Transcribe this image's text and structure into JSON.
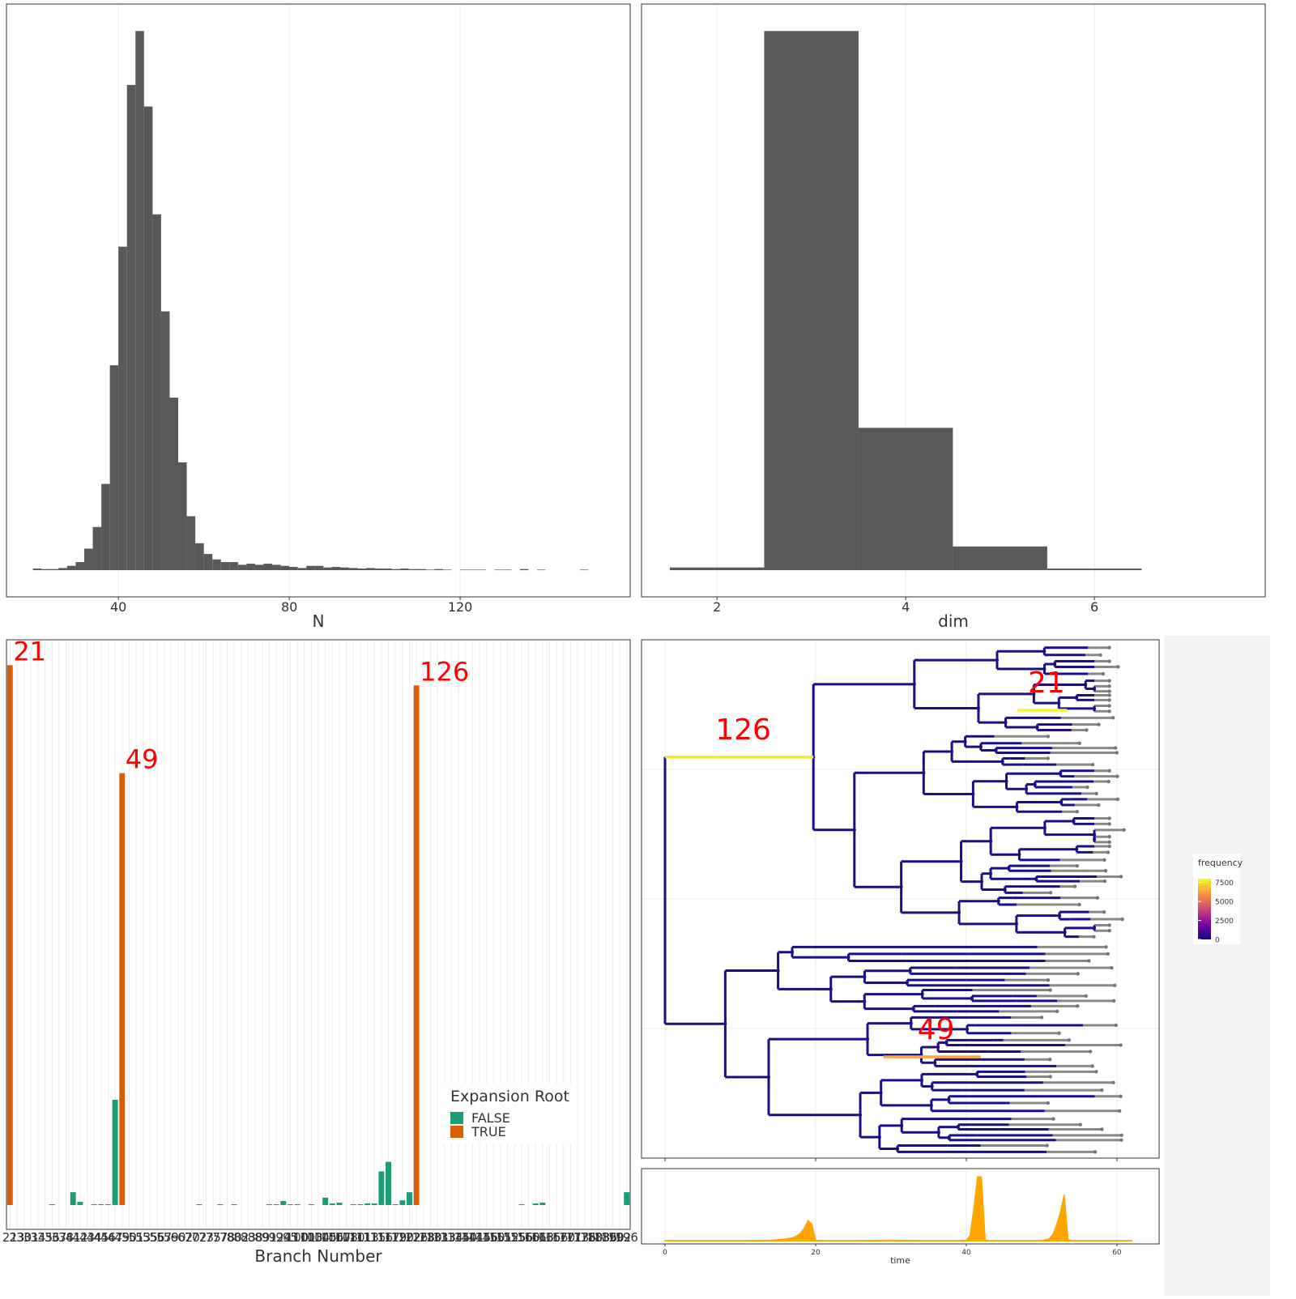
{
  "chart_data": [
    {
      "type": "histogram",
      "xlabel": "N",
      "bins": [
        20,
        22,
        24,
        26,
        28,
        30,
        32,
        34,
        36,
        38,
        40,
        42,
        44,
        46,
        48,
        50,
        52,
        54,
        56,
        58,
        60,
        62,
        64,
        66,
        68,
        70,
        72,
        74,
        76,
        78,
        80,
        82,
        84,
        86,
        88,
        90,
        92,
        94,
        96,
        98,
        100,
        102,
        104,
        106,
        108,
        110,
        112,
        114,
        116,
        118,
        120,
        122,
        124,
        126,
        128,
        130,
        132,
        134,
        136,
        138,
        140,
        142,
        144,
        146,
        148,
        150,
        152,
        154
      ],
      "values": [
        0.3,
        0.2,
        0.2,
        0.4,
        0.8,
        1.5,
        4,
        8,
        16,
        38,
        60,
        90,
        100,
        86,
        66,
        48,
        32,
        20,
        10,
        5,
        3,
        2,
        1.5,
        1.5,
        1,
        1.2,
        1,
        1.2,
        1,
        0.8,
        0.6,
        0.4,
        0.8,
        0.8,
        0.5,
        0.6,
        0.5,
        0.4,
        0.3,
        0.4,
        0.3,
        0.3,
        0.2,
        0.3,
        0.2,
        0.2,
        0.1,
        0.2,
        0.1,
        0,
        0.1,
        0.1,
        0.1,
        0,
        0.1,
        0.1,
        0,
        0.2,
        0,
        0.1,
        0,
        0,
        0,
        0,
        0.1,
        0,
        0
      ],
      "color": "#595959",
      "xlim": [
        13.8,
        159.8
      ],
      "xticks": [
        40,
        80,
        120
      ],
      "ylim": [
        -4.95,
        105
      ]
    },
    {
      "type": "histogram",
      "xlabel": "dim",
      "bins": [
        1.5,
        2.5,
        3.5,
        4.5,
        5.5,
        6.5
      ],
      "values": [
        0.5,
        100,
        26.4,
        4.4,
        0.3
      ],
      "color": "#595959",
      "xlim": [
        1.2,
        7.81
      ],
      "xticks": [
        2,
        4,
        6
      ],
      "ylim": [
        -4.95,
        105
      ]
    },
    {
      "type": "bar",
      "xlabel": "Branch Number",
      "legend_title": "Expansion Root",
      "categories": [
        "21",
        "23",
        "30",
        "31",
        "34",
        "35",
        "36",
        "37",
        "38",
        "41",
        "42",
        "43",
        "44",
        "45",
        "46",
        "47",
        "49",
        "50",
        "51",
        "53",
        "55",
        "56",
        "57",
        "59",
        "60",
        "62",
        "70",
        "72",
        "73",
        "75",
        "77",
        "78",
        "80",
        "82",
        "83",
        "88",
        "89",
        "91",
        "92",
        "94",
        "95",
        "100",
        "101",
        "103",
        "104",
        "105",
        "106",
        "107",
        "108",
        "110",
        "111",
        "113",
        "115",
        "116",
        "117",
        "119",
        "120",
        "122",
        "126",
        "128",
        "130",
        "131",
        "133",
        "134",
        "135",
        "140",
        "141",
        "145",
        "146",
        "150",
        "151",
        "152",
        "155",
        "156",
        "160",
        "161",
        "163",
        "165",
        "166",
        "170",
        "171",
        "173",
        "176",
        "180",
        "183",
        "186",
        "190",
        "192",
        "196"
      ],
      "series": [
        {
          "name": "FALSE",
          "color": "#1b9e77",
          "values": [
            null,
            0,
            0,
            0,
            0,
            0,
            12,
            0,
            0,
            190,
            48,
            0,
            12,
            12,
            12,
            1560,
            null,
            0,
            0,
            0,
            0,
            0,
            0,
            0,
            0,
            0,
            0,
            12,
            0,
            0,
            12,
            0,
            12,
            0,
            0,
            0,
            0,
            12,
            12,
            60,
            12,
            12,
            0,
            12,
            0,
            110,
            24,
            36,
            0,
            12,
            12,
            24,
            24,
            500,
            640,
            12,
            70,
            190,
            null,
            0,
            0,
            0,
            0,
            0,
            0,
            0,
            0,
            0,
            0,
            0,
            0,
            0,
            0,
            12,
            0,
            24,
            36,
            0,
            0,
            0,
            0,
            0,
            0,
            0,
            0,
            0,
            0,
            0,
            190
          ]
        },
        {
          "name": "TRUE",
          "color": "#d95f02",
          "values": [
            8000,
            null,
            null,
            null,
            null,
            null,
            null,
            null,
            null,
            null,
            null,
            null,
            null,
            null,
            null,
            null,
            6400,
            null,
            null,
            null,
            null,
            null,
            null,
            null,
            null,
            null,
            null,
            null,
            null,
            null,
            null,
            null,
            null,
            null,
            null,
            null,
            null,
            null,
            null,
            null,
            null,
            null,
            null,
            null,
            null,
            null,
            null,
            null,
            null,
            null,
            null,
            null,
            null,
            null,
            null,
            null,
            null,
            null,
            7700,
            null,
            null,
            null,
            null,
            null,
            null,
            null,
            null,
            null,
            null,
            null,
            null,
            null,
            null,
            null,
            null,
            null,
            null,
            null,
            null,
            null,
            null,
            null,
            null,
            null,
            null,
            null,
            null,
            null,
            null
          ]
        }
      ],
      "annotations": [
        "21",
        "49",
        "126"
      ],
      "annotation_color": "#ff0000",
      "ylim": [
        -360,
        8376
      ]
    },
    {
      "type": "tree",
      "highlights": [
        {
          "label": "21",
          "frequency": 8000,
          "start": 46.8,
          "end": 53.4
        },
        {
          "label": "49",
          "frequency": 6400,
          "start": 29,
          "end": 41.9
        },
        {
          "label": "126",
          "frequency": 7700,
          "start": 0,
          "end": 19.7
        }
      ],
      "xlim": [
        -3.12,
        65.6
      ],
      "colorbar": {
        "title": "frequency",
        "limits": [
          0,
          8000
        ],
        "ticks": [
          0,
          2500,
          5000,
          7500
        ]
      }
    },
    {
      "type": "area",
      "xlabel": "time",
      "x": [
        0,
        5,
        10,
        14,
        15,
        16,
        17,
        17.5,
        18,
        18.5,
        19,
        19.5,
        20,
        21,
        25,
        30,
        35,
        39,
        40,
        40.5,
        41,
        41.5,
        42,
        42.5,
        43,
        45,
        50,
        51,
        51.5,
        52,
        52.5,
        53,
        53.5,
        54,
        56,
        62
      ],
      "values": [
        0.5,
        0.5,
        0.5,
        1,
        2,
        3,
        5,
        8,
        12,
        20,
        32,
        26,
        1,
        0.5,
        0.5,
        1,
        0.5,
        0.5,
        1,
        8,
        50,
        100,
        100,
        2,
        0.5,
        0.5,
        0.5,
        3,
        10,
        25,
        45,
        72,
        2,
        0.5,
        0.5,
        0.5
      ],
      "color": "#ffa500",
      "xlim": [
        -3.12,
        65.6
      ],
      "xticks": [
        0,
        20,
        40,
        60
      ],
      "ylim": [
        -4.7,
        113
      ]
    }
  ]
}
